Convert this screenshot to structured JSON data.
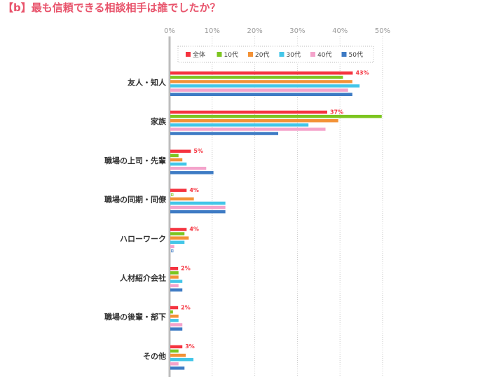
{
  "chart_data": {
    "type": "bar",
    "orientation": "horizontal",
    "title": "【b】最も信頼できる相談相手は誰でしたか？",
    "xlabel": "",
    "ylabel": "",
    "xlim": [
      0,
      50
    ],
    "x_ticks": [
      "0%",
      "10%",
      "20%",
      "30%",
      "40%",
      "50%"
    ],
    "grid": true,
    "legend_position": "top-right",
    "categories": [
      "友人・知人",
      "家族",
      "職場の上司・先輩",
      "職場の同期・同僚",
      "ハローワーク",
      "人材紹介会社",
      "職場の後輩・部下",
      "その他"
    ],
    "series": [
      {
        "name": "全体",
        "color": "#f5333f",
        "values": [
          43,
          37,
          5,
          4,
          4,
          2,
          2,
          3
        ],
        "labels": [
          "43%",
          "37%",
          "5%",
          "4%",
          "4%",
          "2%",
          "2%",
          "3%"
        ]
      },
      {
        "name": "10代",
        "color": "#7cc520",
        "values": [
          40.7,
          49.8,
          2.1,
          0,
          3.5,
          2.1,
          0.8,
          2.1
        ]
      },
      {
        "name": "20代",
        "color": "#f39237",
        "values": [
          42.9,
          39.6,
          3,
          5.7,
          4.5,
          2.1,
          2.1,
          3.8
        ]
      },
      {
        "name": "30代",
        "color": "#43c6e8",
        "values": [
          44.6,
          32.6,
          4,
          13.1,
          3.5,
          3,
          2.1,
          5.6
        ]
      },
      {
        "name": "40代",
        "color": "#f4a3cb",
        "values": [
          41.9,
          36.6,
          8.6,
          13.1,
          1.1,
          2.1,
          3,
          2.1
        ]
      },
      {
        "name": "50代",
        "color": "#3e7bc4",
        "values": [
          42.9,
          25.5,
          10.3,
          13.1,
          0,
          3,
          3,
          3.5
        ]
      }
    ]
  }
}
